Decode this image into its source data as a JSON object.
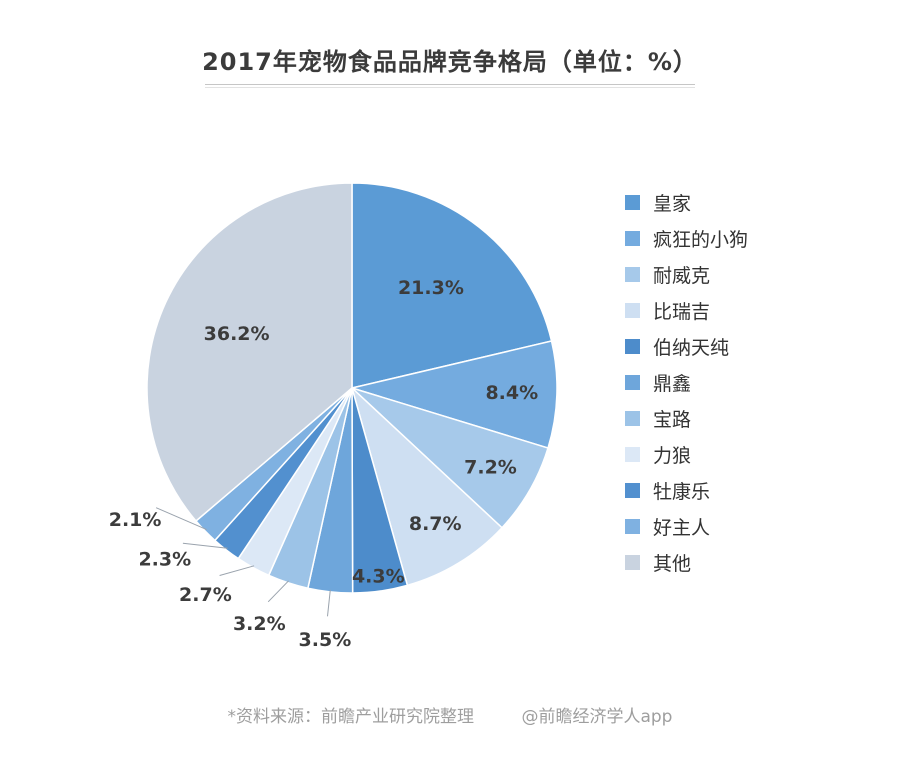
{
  "page": {
    "footer": {
      "source": "*资料来源：前瞻产业研究院整理",
      "credit": "@前瞻经济学人app"
    }
  },
  "chart_data": {
    "type": "pie",
    "title": "2017年宠物食品品牌竞争格局（单位：%）",
    "unit": "%",
    "categories": [
      "皇家",
      "疯狂的小狗",
      "耐威克",
      "比瑞吉",
      "伯纳天纯",
      "鼎鑫",
      "宝路",
      "力狼",
      "牡康乐",
      "好主人",
      "其他"
    ],
    "values": [
      21.3,
      8.4,
      7.2,
      8.7,
      4.3,
      3.5,
      3.2,
      2.7,
      2.3,
      2.1,
      36.2
    ],
    "labels": [
      "21.3%",
      "8.4%",
      "7.2%",
      "8.7%",
      "4.3%",
      "3.5%",
      "3.2%",
      "2.7%",
      "2.3%",
      "2.1%",
      "36.2%"
    ],
    "colors": [
      "#5B9BD5",
      "#74ABDF",
      "#A6C9EA",
      "#CEDFF2",
      "#4D8CCB",
      "#6EA6DB",
      "#9CC3E7",
      "#DCE8F6",
      "#5290CF",
      "#7FB1E1",
      "#C9D3E0"
    ],
    "legend_position": "right",
    "start_angle_deg": 0,
    "direction": "clockwise",
    "inside_label_min_pct": 4,
    "leader_line_color": "#9aa3ad",
    "label_color": "#3c3c3c"
  }
}
